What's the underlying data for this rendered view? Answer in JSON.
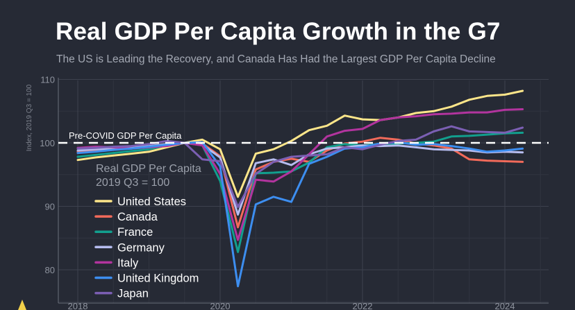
{
  "page": {
    "title": "Real GDP Per Capita Growth in the G7",
    "subtitle": "The US is Leading the Recovery, and Canada Has Had the Largest GDP Per Capita Decline",
    "brand_icon": "triangle-logo-icon"
  },
  "chart_data": {
    "type": "line",
    "title": "Real GDP Per Capita Growth in the G7",
    "ylabel": "Index, 2019 Q3 = 100",
    "xlabel": "",
    "ylim": [
      75,
      110
    ],
    "xlim": [
      2018.0,
      2024.5
    ],
    "yticks": [
      80,
      90,
      100,
      110
    ],
    "xticks": [
      "2018",
      "2020",
      "2022",
      "2024"
    ],
    "grid": true,
    "reference_line": {
      "value": 100,
      "label": "Pre-COVID GDP Per Capita",
      "color": "#ffffff",
      "style": "dashed"
    },
    "legend": {
      "title_line1": "Real GDP Per Capita",
      "title_line2": "2019 Q3 = 100",
      "placement": "lower-left"
    },
    "x": [
      2018.0,
      2018.25,
      2018.5,
      2018.75,
      2019.0,
      2019.25,
      2019.5,
      2019.75,
      2020.0,
      2020.25,
      2020.5,
      2020.75,
      2021.0,
      2021.25,
      2021.5,
      2021.75,
      2022.0,
      2022.25,
      2022.5,
      2022.75,
      2023.0,
      2023.25,
      2023.5,
      2023.75,
      2024.0,
      2024.25
    ],
    "series": [
      {
        "name": "United States",
        "color": "#fde68a",
        "values": [
          97.3,
          97.7,
          98.0,
          98.3,
          98.6,
          99.3,
          100.0,
          100.5,
          99.0,
          91.5,
          98.3,
          99.0,
          100.3,
          102.0,
          102.7,
          104.3,
          103.7,
          103.6,
          104.0,
          104.7,
          105.0,
          105.7,
          106.8,
          107.4,
          107.6,
          108.2
        ]
      },
      {
        "name": "Canada",
        "color": "#f26a5a",
        "values": [
          98.6,
          98.9,
          99.1,
          99.2,
          99.4,
          99.7,
          100.0,
          99.9,
          97.9,
          86.7,
          95.8,
          97.0,
          97.5,
          97.0,
          98.8,
          99.9,
          100.2,
          100.8,
          100.5,
          99.9,
          99.6,
          99.1,
          97.4,
          97.2,
          97.1,
          97.0
        ]
      },
      {
        "name": "France",
        "color": "#129f8e",
        "values": [
          97.8,
          98.1,
          98.4,
          98.7,
          99.0,
          99.6,
          100.0,
          99.6,
          94.0,
          82.8,
          95.2,
          95.3,
          95.5,
          96.9,
          99.3,
          99.8,
          99.6,
          99.8,
          99.9,
          100.0,
          100.2,
          101.0,
          101.1,
          101.3,
          101.5,
          101.6
        ]
      },
      {
        "name": "Germany",
        "color": "#b6bcef",
        "values": [
          98.8,
          99.0,
          99.1,
          99.3,
          99.5,
          99.8,
          100.0,
          99.7,
          97.7,
          88.7,
          96.8,
          97.4,
          96.5,
          98.2,
          99.1,
          99.3,
          99.6,
          99.5,
          99.6,
          99.3,
          99.0,
          98.9,
          98.8,
          98.5,
          98.6,
          98.5
        ]
      },
      {
        "name": "Italy",
        "color": "#b2349e",
        "values": [
          99.2,
          99.4,
          99.3,
          99.1,
          99.3,
          99.5,
          100.0,
          99.6,
          95.1,
          84.7,
          94.2,
          93.9,
          95.5,
          98.2,
          101.0,
          101.9,
          102.2,
          103.6,
          104.0,
          104.2,
          104.5,
          104.6,
          104.8,
          104.8,
          105.2,
          105.3
        ]
      },
      {
        "name": "United Kingdom",
        "color": "#3d8ef0",
        "values": [
          98.4,
          98.6,
          98.9,
          99.1,
          99.4,
          99.7,
          100.0,
          100.1,
          96.3,
          77.4,
          90.3,
          91.5,
          90.7,
          96.7,
          97.8,
          99.1,
          99.3,
          99.9,
          100.1,
          99.7,
          99.8,
          99.5,
          99.1,
          98.6,
          98.8,
          99.1
        ]
      },
      {
        "name": "Japan",
        "color": "#7b5fb3",
        "values": [
          99.1,
          99.2,
          99.4,
          99.5,
          99.8,
          100.3,
          100.0,
          97.4,
          97.1,
          89.9,
          95.1,
          97.0,
          97.8,
          98.0,
          98.2,
          99.3,
          99.0,
          99.7,
          100.3,
          100.5,
          101.8,
          102.6,
          101.8,
          101.7,
          101.6,
          102.4
        ]
      }
    ]
  }
}
